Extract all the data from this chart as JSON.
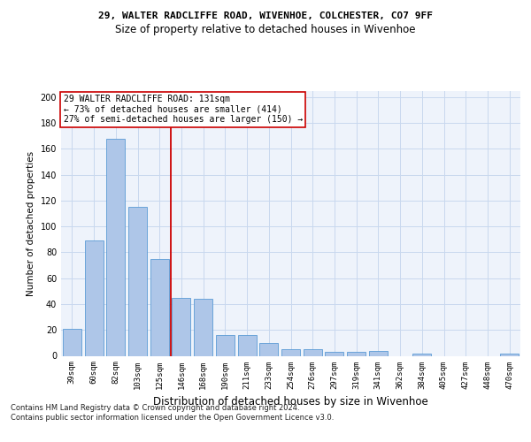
{
  "title1": "29, WALTER RADCLIFFE ROAD, WIVENHOE, COLCHESTER, CO7 9FF",
  "title2": "Size of property relative to detached houses in Wivenhoe",
  "xlabel": "Distribution of detached houses by size in Wivenhoe",
  "ylabel": "Number of detached properties",
  "categories": [
    "39sqm",
    "60sqm",
    "82sqm",
    "103sqm",
    "125sqm",
    "146sqm",
    "168sqm",
    "190sqm",
    "211sqm",
    "233sqm",
    "254sqm",
    "276sqm",
    "297sqm",
    "319sqm",
    "341sqm",
    "362sqm",
    "384sqm",
    "405sqm",
    "427sqm",
    "448sqm",
    "470sqm"
  ],
  "values": [
    21,
    89,
    168,
    115,
    75,
    45,
    44,
    16,
    16,
    10,
    5,
    5,
    3,
    3,
    4,
    0,
    2,
    0,
    0,
    0,
    2
  ],
  "bar_color": "#aec6e8",
  "bar_edge_color": "#5b9bd5",
  "grid_color": "#c8d8ee",
  "background_color": "#eef3fb",
  "vline_x": 4.5,
  "vline_color": "#cc0000",
  "annotation_text": "29 WALTER RADCLIFFE ROAD: 131sqm\n← 73% of detached houses are smaller (414)\n27% of semi-detached houses are larger (150) →",
  "annotation_box_color": "#ffffff",
  "annotation_box_edge": "#cc0000",
  "ylim": [
    0,
    205
  ],
  "yticks": [
    0,
    20,
    40,
    60,
    80,
    100,
    120,
    140,
    160,
    180,
    200
  ],
  "footer": "Contains HM Land Registry data © Crown copyright and database right 2024.\nContains public sector information licensed under the Open Government Licence v3.0.",
  "title1_fontsize": 8.0,
  "title2_fontsize": 8.5,
  "ylabel_fontsize": 7.5,
  "xlabel_fontsize": 8.5,
  "tick_fontsize": 6.5,
  "footer_fontsize": 6.0,
  "annot_fontsize": 7.0
}
